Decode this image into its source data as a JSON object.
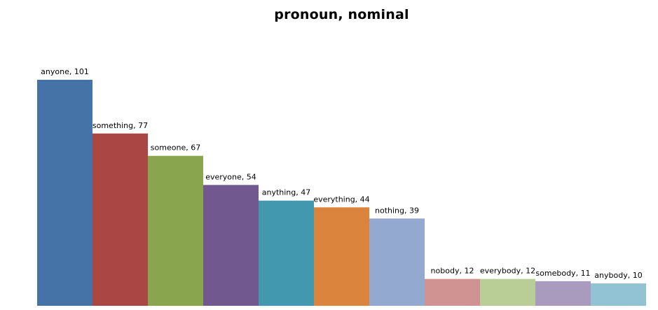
{
  "chart_data": {
    "type": "bar",
    "title": "pronoun, nominal",
    "categories": [
      "anyone",
      "something",
      "someone",
      "everyone",
      "anything",
      "everything",
      "nothing",
      "nobody",
      "everybody",
      "somebody",
      "anybody"
    ],
    "values": [
      101,
      77,
      67,
      54,
      47,
      44,
      39,
      12,
      12,
      11,
      10
    ],
    "data_labels": [
      "anyone, 101",
      "something, 77",
      "someone, 67",
      "everyone, 54",
      "anything, 47",
      "everything, 44",
      "nothing, 39",
      "nobody, 12",
      "everybody, 12",
      "somebody, 11",
      "anybody, 10"
    ],
    "colors": [
      "#4572A7",
      "#AA4643",
      "#89A54E",
      "#71588F",
      "#4198AF",
      "#DB843D",
      "#93A9CF",
      "#D19392",
      "#B9CD96",
      "#A99BBD",
      "#91C3D5"
    ],
    "xlabel": "",
    "ylabel": "",
    "ylim": [
      0,
      101
    ],
    "grid": false,
    "legend": "none"
  }
}
